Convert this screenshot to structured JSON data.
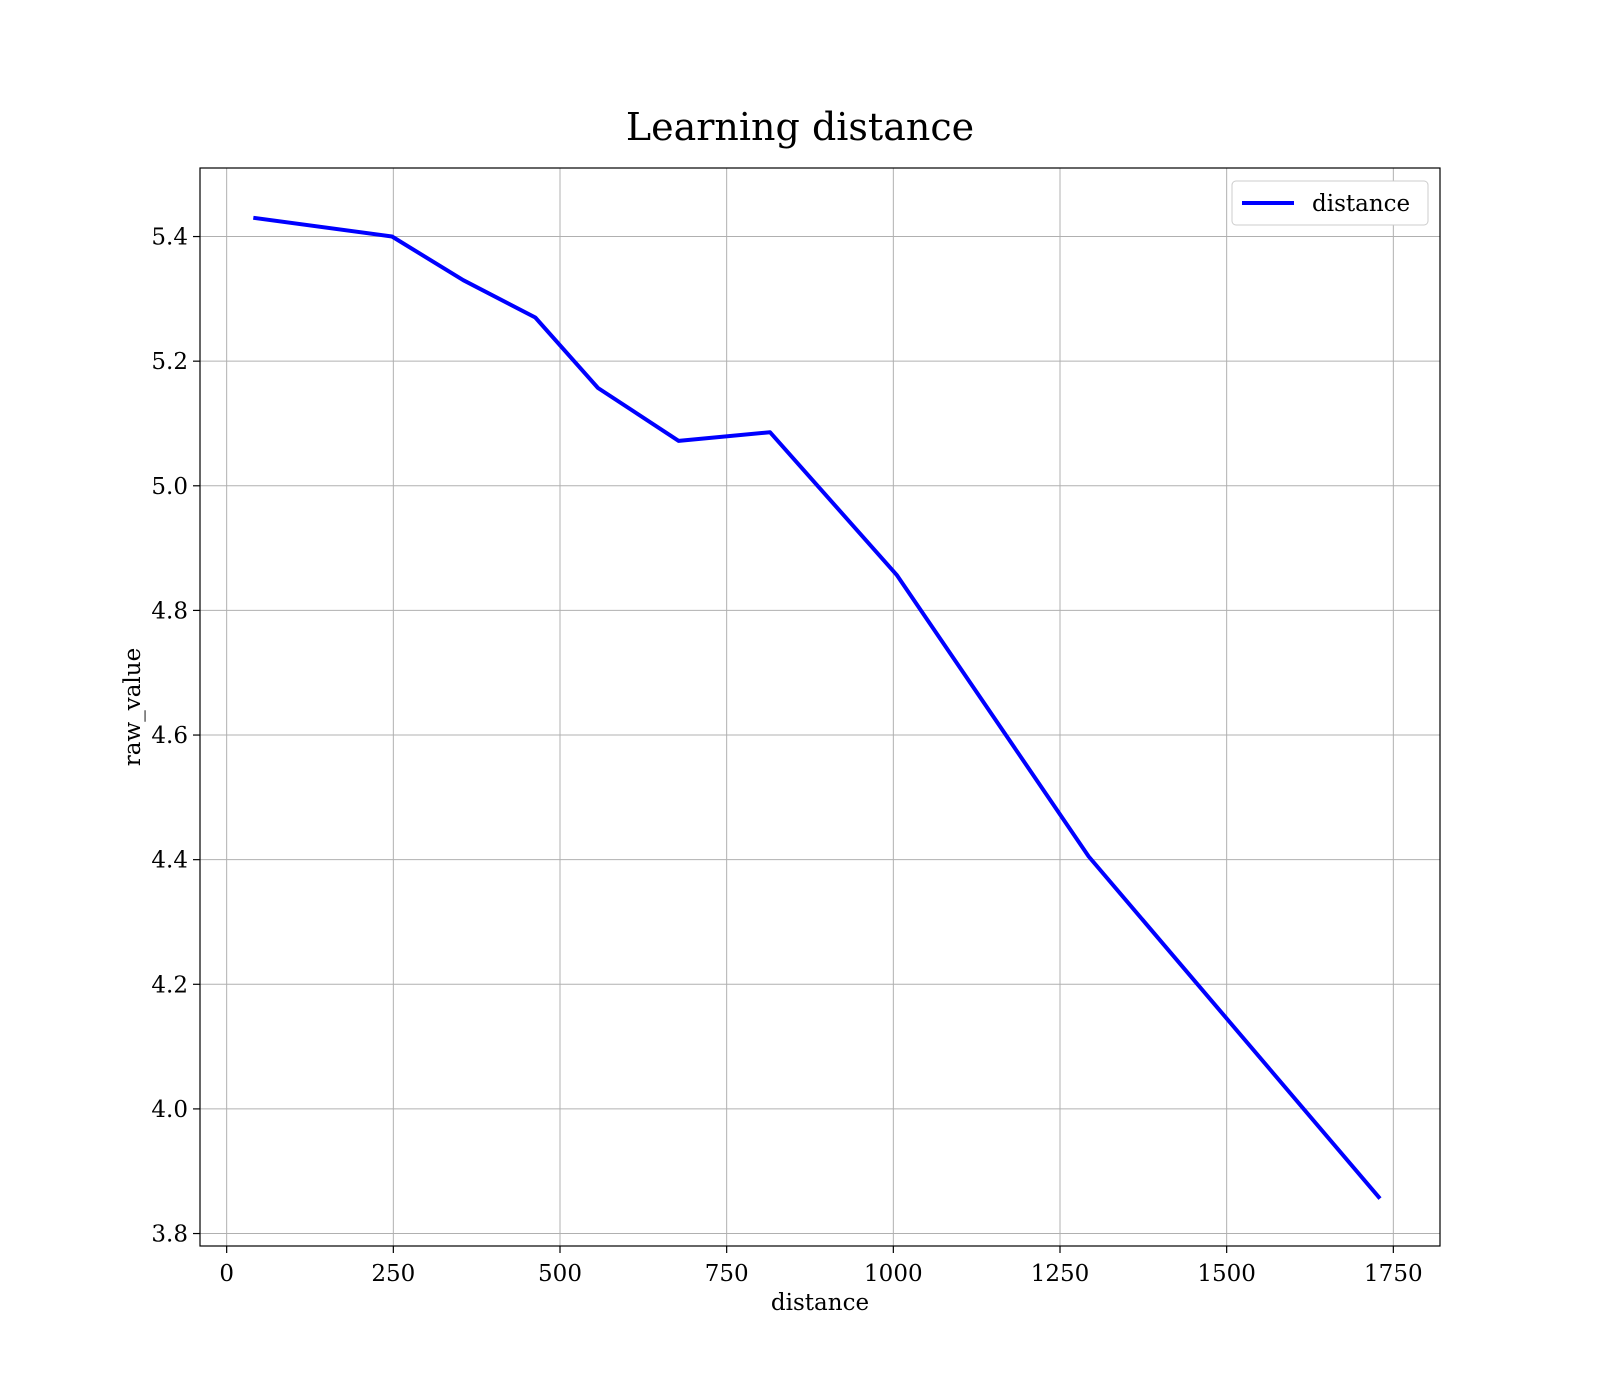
{
  "chart_data": {
    "type": "line",
    "title": "Learning distance",
    "xlabel": "distance",
    "ylabel": "raw_value",
    "xlim": [
      -40,
      1820
    ],
    "ylim": [
      3.78,
      5.51
    ],
    "xticks": [
      0,
      250,
      500,
      750,
      1000,
      1250,
      1500,
      1750
    ],
    "yticks": [
      3.8,
      4.0,
      4.2,
      4.4,
      4.6,
      4.8,
      5.0,
      5.2,
      5.4
    ],
    "grid": true,
    "legend_position": "top-right",
    "series": [
      {
        "name": "distance",
        "color": "#0000ff",
        "x": [
          40,
          248,
          355,
          463,
          557,
          678,
          815,
          1005,
          1293,
          1730
        ],
        "y": [
          5.43,
          5.4,
          5.33,
          5.27,
          5.157,
          5.072,
          5.086,
          4.857,
          4.405,
          3.856
        ]
      }
    ]
  }
}
